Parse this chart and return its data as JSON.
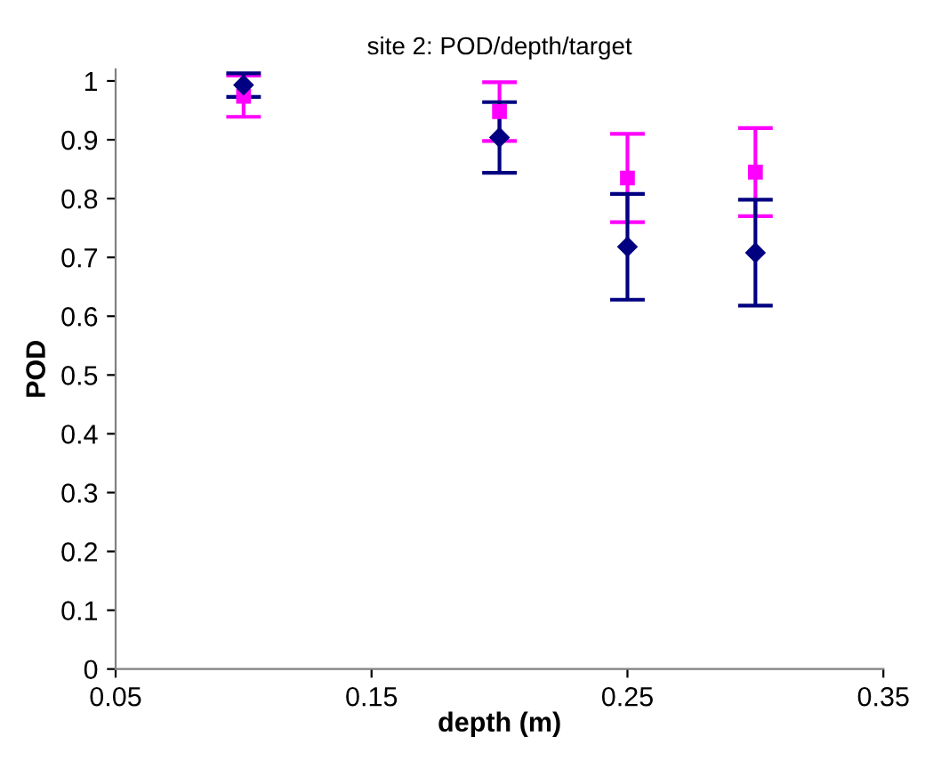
{
  "chart_data": {
    "type": "scatter",
    "title": "site 2: POD/depth/target",
    "xlabel": "depth (m)",
    "ylabel": "POD",
    "x": [
      0.1,
      0.2,
      0.25,
      0.3
    ],
    "series": [
      {
        "color": "#ff00ff",
        "marker": "square",
        "values": [
          0.974,
          0.948,
          0.835,
          0.845
        ],
        "errors": [
          0.035,
          0.05,
          0.075,
          0.075
        ]
      },
      {
        "color": "#000080",
        "marker": "diamond",
        "values": [
          0.993,
          0.904,
          0.718,
          0.708
        ],
        "errors": [
          0.02,
          0.06,
          0.09,
          0.09
        ]
      }
    ],
    "xlim": [
      0.05,
      0.35
    ],
    "xticks": [
      0.05,
      0.15,
      0.25,
      0.35
    ],
    "ylim": [
      0,
      1.02
    ],
    "yticks": [
      0,
      0.1,
      0.2,
      0.3,
      0.4,
      0.5,
      0.6,
      0.7,
      0.8,
      0.9,
      1
    ],
    "grid": false,
    "legend": false
  }
}
